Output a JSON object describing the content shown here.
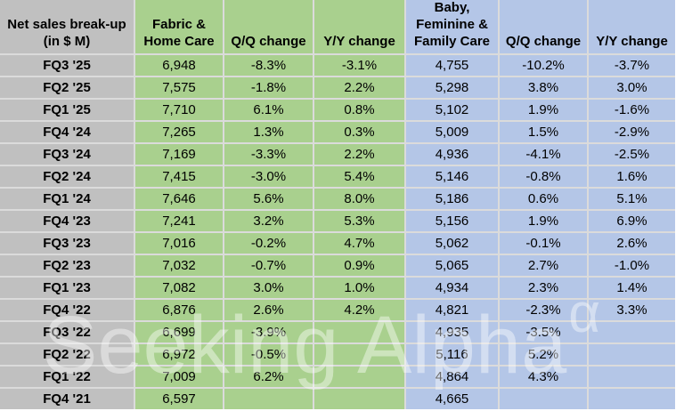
{
  "headers": {
    "corner": "Net sales break-up\n(in $ M)",
    "fabric": "Fabric &\nHome Care",
    "fhc_qq": "Q/Q change",
    "fhc_yy": "Y/Y change",
    "bffc": "Baby,\nFeminine &\nFamily Care",
    "bffc_qq": "Q/Q change",
    "bffc_yy": "Y/Y change"
  },
  "table": {
    "rows": [
      {
        "label": "FQ3 '25",
        "values": [
          "6,948",
          "-8.3%",
          "-3.1%",
          "4,755",
          "-10.2%",
          "-3.7%"
        ]
      },
      {
        "label": "FQ2 '25",
        "values": [
          "7,575",
          "-1.8%",
          "2.2%",
          "5,298",
          "3.8%",
          "3.0%"
        ]
      },
      {
        "label": "FQ1 '25",
        "values": [
          "7,710",
          "6.1%",
          "0.8%",
          "5,102",
          "1.9%",
          "-1.6%"
        ]
      },
      {
        "label": "FQ4 '24",
        "values": [
          "7,265",
          "1.3%",
          "0.3%",
          "5,009",
          "1.5%",
          "-2.9%"
        ]
      },
      {
        "label": "FQ3 '24",
        "values": [
          "7,169",
          "-3.3%",
          "2.2%",
          "4,936",
          "-4.1%",
          "-2.5%"
        ]
      },
      {
        "label": "FQ2 '24",
        "values": [
          "7,415",
          "-3.0%",
          "5.4%",
          "5,146",
          "-0.8%",
          "1.6%"
        ]
      },
      {
        "label": "FQ1 '24",
        "values": [
          "7,646",
          "5.6%",
          "8.0%",
          "5,186",
          "0.6%",
          "5.1%"
        ]
      },
      {
        "label": "FQ4 '23",
        "values": [
          "7,241",
          "3.2%",
          "5.3%",
          "5,156",
          "1.9%",
          "6.9%"
        ]
      },
      {
        "label": "FQ3 '23",
        "values": [
          "7,016",
          "-0.2%",
          "4.7%",
          "5,062",
          "-0.1%",
          "2.6%"
        ]
      },
      {
        "label": "FQ2 '23",
        "values": [
          "7,032",
          "-0.7%",
          "0.9%",
          "5,065",
          "2.7%",
          "-1.0%"
        ]
      },
      {
        "label": "FQ1 '23",
        "values": [
          "7,082",
          "3.0%",
          "1.0%",
          "4,934",
          "2.3%",
          "1.4%"
        ]
      },
      {
        "label": "FQ4 '22",
        "values": [
          "6,876",
          "2.6%",
          "4.2%",
          "4,821",
          "-2.3%",
          "3.3%"
        ]
      },
      {
        "label": "FQ3 '22",
        "values": [
          "6,699",
          "-3.9%",
          "",
          "4,935",
          "-3.5%",
          ""
        ]
      },
      {
        "label": "FQ2 '22",
        "values": [
          "6,972",
          "-0.5%",
          "",
          "5,116",
          "5.2%",
          ""
        ]
      },
      {
        "label": "FQ1 '22",
        "values": [
          "7,009",
          "6.2%",
          "",
          "4,864",
          "4.3%",
          ""
        ]
      },
      {
        "label": "FQ4 '21",
        "values": [
          "6,597",
          "",
          "",
          "4,665",
          "",
          ""
        ]
      }
    ]
  },
  "watermark": {
    "text": "Seeking Alpha",
    "superscript": "α"
  },
  "colors": {
    "gray": "#C0C0C0",
    "green": "#A9D08E",
    "blue": "#B4C6E7",
    "gridline": "#DBDBDB",
    "text": "#000000"
  },
  "chart_data": {
    "type": "table",
    "title": "Net sales break-up (in $ M)",
    "row_labels": [
      "FQ3 '25",
      "FQ2 '25",
      "FQ1 '25",
      "FQ4 '24",
      "FQ3 '24",
      "FQ2 '24",
      "FQ1 '24",
      "FQ4 '23",
      "FQ3 '23",
      "FQ2 '23",
      "FQ1 '23",
      "FQ4 '22",
      "FQ3 '22",
      "FQ2 '22",
      "FQ1 '22",
      "FQ4 '21"
    ],
    "columns": [
      "Fabric & Home Care",
      "Q/Q change",
      "Y/Y change",
      "Baby, Feminine & Family Care",
      "Q/Q change",
      "Y/Y change"
    ],
    "units": {
      "sales": "$ M",
      "changes": "%"
    },
    "rows": [
      [
        6948,
        -8.3,
        -3.1,
        4755,
        -10.2,
        -3.7
      ],
      [
        7575,
        -1.8,
        2.2,
        5298,
        3.8,
        3.0
      ],
      [
        7710,
        6.1,
        0.8,
        5102,
        1.9,
        -1.6
      ],
      [
        7265,
        1.3,
        0.3,
        5009,
        1.5,
        -2.9
      ],
      [
        7169,
        -3.3,
        2.2,
        4936,
        -4.1,
        -2.5
      ],
      [
        7415,
        -3.0,
        5.4,
        5146,
        -0.8,
        1.6
      ],
      [
        7646,
        5.6,
        8.0,
        5186,
        0.6,
        5.1
      ],
      [
        7241,
        3.2,
        5.3,
        5156,
        1.9,
        6.9
      ],
      [
        7016,
        -0.2,
        4.7,
        5062,
        -0.1,
        2.6
      ],
      [
        7032,
        -0.7,
        0.9,
        5065,
        2.7,
        -1.0
      ],
      [
        7082,
        3.0,
        1.0,
        4934,
        2.3,
        1.4
      ],
      [
        6876,
        2.6,
        4.2,
        4821,
        -2.3,
        3.3
      ],
      [
        6699,
        -3.9,
        null,
        4935,
        -3.5,
        null
      ],
      [
        6972,
        -0.5,
        null,
        5116,
        5.2,
        null
      ],
      [
        7009,
        6.2,
        null,
        4864,
        4.3,
        null
      ],
      [
        6597,
        null,
        null,
        4665,
        null,
        null
      ]
    ]
  }
}
